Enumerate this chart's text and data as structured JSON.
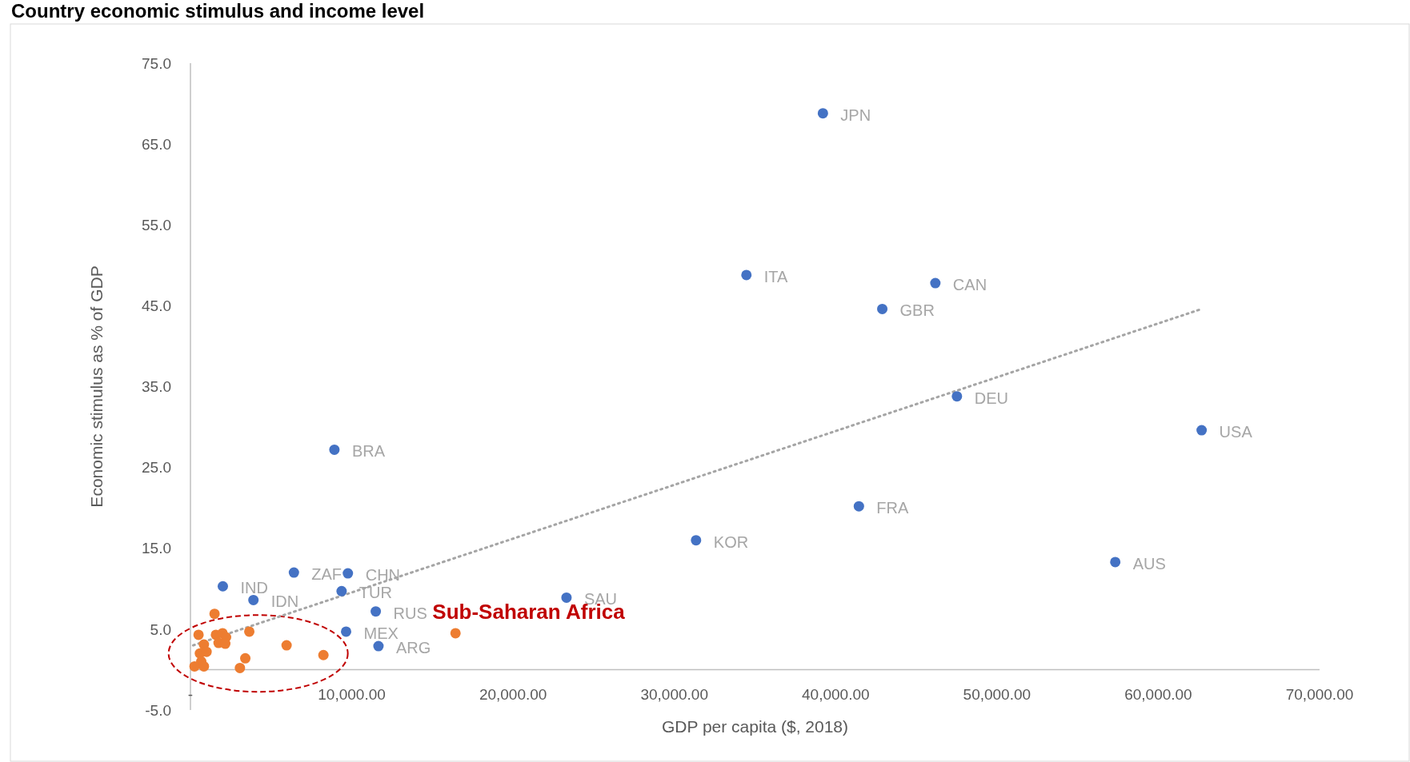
{
  "chart_data": {
    "type": "scatter",
    "title": "Country economic stimulus and income level",
    "xlabel": "GDP per capita ($, 2018)",
    "ylabel": "Economic stimulus as % of GDP",
    "xlim": [
      0,
      70000
    ],
    "ylim": [
      -5,
      75
    ],
    "xticks": [
      {
        "value": 0,
        "label": "-"
      },
      {
        "value": 10000,
        "label": "10,000.00"
      },
      {
        "value": 20000,
        "label": "20,000.00"
      },
      {
        "value": 30000,
        "label": "30,000.00"
      },
      {
        "value": 40000,
        "label": "40,000.00"
      },
      {
        "value": 50000,
        "label": "50,000.00"
      },
      {
        "value": 60000,
        "label": "60,000.00"
      },
      {
        "value": 70000,
        "label": "70,000.00"
      }
    ],
    "yticks": [
      {
        "value": -5,
        "label": "-5.0"
      },
      {
        "value": 5,
        "label": "5.0"
      },
      {
        "value": 15,
        "label": "15.0"
      },
      {
        "value": 25,
        "label": "25.0"
      },
      {
        "value": 35,
        "label": "35.0"
      },
      {
        "value": 45,
        "label": "45.0"
      },
      {
        "value": 55,
        "label": "55.0"
      },
      {
        "value": 65,
        "label": "65.0"
      },
      {
        "value": 75,
        "label": "75.0"
      }
    ],
    "grid": false,
    "marker": "circle",
    "series": [
      {
        "color": "#4472c4",
        "x": [
          39209,
          34467,
          46180,
          42890,
          47518,
          62688,
          8924,
          41440,
          31344,
          57334,
          6414,
          9760,
          2008,
          9370,
          3904,
          23313,
          11489,
          9649,
          11656
        ],
        "values": [
          68.8,
          48.8,
          47.8,
          44.6,
          33.8,
          29.6,
          27.2,
          20.2,
          16.0,
          13.3,
          12.0,
          11.9,
          10.3,
          9.7,
          8.6,
          8.9,
          7.2,
          4.7,
          2.9
        ]
      },
      {
        "color": "#ed7d31",
        "x": [
          1494,
          501,
          1578,
          1990,
          2208,
          3648,
          834,
          1742,
          2159,
          586,
          998,
          670,
          3400,
          3067,
          253,
          834,
          5960,
          8243,
          16432
        ],
        "values": [
          6.9,
          4.3,
          4.3,
          4.5,
          4.0,
          4.7,
          3.1,
          3.3,
          3.2,
          2.0,
          2.2,
          1.0,
          1.4,
          0.2,
          0.4,
          0.4,
          3.0,
          1.8,
          4.5
        ]
      },
      {
        "type": "line",
        "color": "#a5a5a5",
        "line_style": "dotted",
        "marker": "none",
        "x": [
          167,
          62688
        ],
        "values": [
          3.0,
          44.6
        ]
      }
    ],
    "annotations": [
      {
        "text": "JPN",
        "x": 39209,
        "y": 68.8
      },
      {
        "text": "ITA",
        "x": 34467,
        "y": 48.8
      },
      {
        "text": "CAN",
        "x": 46180,
        "y": 47.8
      },
      {
        "text": "GBR",
        "x": 42890,
        "y": 44.6
      },
      {
        "text": "DEU",
        "x": 47518,
        "y": 33.8
      },
      {
        "text": "USA",
        "x": 62688,
        "y": 29.6
      },
      {
        "text": "BRA",
        "x": 8924,
        "y": 27.2
      },
      {
        "text": "FRA",
        "x": 41440,
        "y": 20.2
      },
      {
        "text": "KOR",
        "x": 31344,
        "y": 16.0
      },
      {
        "text": "AUS",
        "x": 57334,
        "y": 13.3
      },
      {
        "text": "ZAF",
        "x": 6414,
        "y": 12.0
      },
      {
        "text": "CHN",
        "x": 9760,
        "y": 11.9
      },
      {
        "text": "IND",
        "x": 2008,
        "y": 10.3
      },
      {
        "text": "TUR",
        "x": 9370,
        "y": 9.7
      },
      {
        "text": "IDN",
        "x": 3904,
        "y": 8.6
      },
      {
        "text": "SAU",
        "x": 23313,
        "y": 8.9
      },
      {
        "text": "RUS",
        "x": 11489,
        "y": 7.2
      },
      {
        "text": "MEX",
        "x": 9649,
        "y": 4.7
      },
      {
        "text": "ARG",
        "x": 11656,
        "y": 2.9
      },
      "Sub-Saharan Africa"
    ]
  }
}
